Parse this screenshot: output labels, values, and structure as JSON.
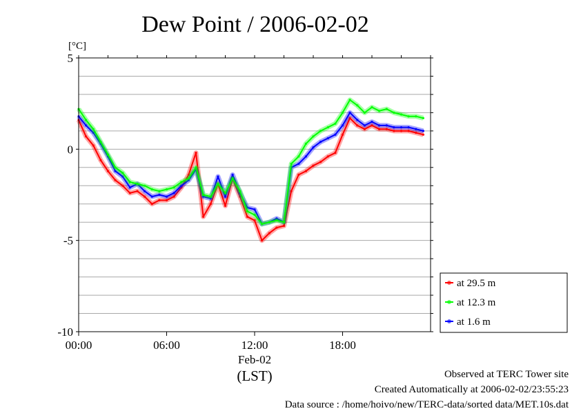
{
  "chart_data": {
    "type": "line",
    "title": "Dew Point / 2006-02-02",
    "ylabel": "[°C]",
    "xlabel": "(LST)",
    "date_label": "Feb-02",
    "ylim": [
      -10,
      5
    ],
    "xlim_hours": [
      0,
      24
    ],
    "yticks": [
      "5",
      "0",
      "-5",
      "-10"
    ],
    "xticks": [
      "00:00",
      "06:00",
      "12:00",
      "18:00"
    ],
    "grid": true,
    "legend_position": "right-bottom",
    "series": [
      {
        "name": "at 29.5 m",
        "color": "#ff0000",
        "x": [
          0,
          0.5,
          1,
          1.5,
          2,
          2.5,
          3,
          3.5,
          4,
          4.5,
          5,
          5.5,
          6,
          6.5,
          7,
          7.5,
          8,
          8.5,
          9,
          9.5,
          10,
          10.5,
          11,
          11.5,
          12,
          12.5,
          13,
          13.5,
          14,
          14.5,
          15,
          15.5,
          16,
          16.5,
          17,
          17.5,
          18,
          18.5,
          19,
          19.5,
          20,
          20.5,
          21,
          21.5,
          22,
          22.5,
          23,
          23.5
        ],
        "values": [
          1.6,
          0.7,
          0.2,
          -0.6,
          -1.2,
          -1.7,
          -2.0,
          -2.4,
          -2.3,
          -2.6,
          -3.0,
          -2.8,
          -2.8,
          -2.6,
          -2.1,
          -1.4,
          -0.2,
          -3.7,
          -3.0,
          -1.9,
          -3.1,
          -1.6,
          -2.6,
          -3.7,
          -3.9,
          -5.0,
          -4.6,
          -4.3,
          -4.2,
          -2.3,
          -1.4,
          -1.2,
          -0.9,
          -0.7,
          -0.4,
          -0.2,
          0.8,
          1.7,
          1.3,
          1.1,
          1.3,
          1.1,
          1.1,
          1.0,
          1.0,
          1.0,
          0.9,
          0.8
        ]
      },
      {
        "name": "at 12.3 m",
        "color": "#00ff00",
        "x": [
          0,
          0.5,
          1,
          1.5,
          2,
          2.5,
          3,
          3.5,
          4,
          4.5,
          5,
          5.5,
          6,
          6.5,
          7,
          7.5,
          8,
          8.5,
          9,
          9.5,
          10,
          10.5,
          11,
          11.5,
          12,
          12.5,
          13,
          13.5,
          14,
          14.5,
          15,
          15.5,
          16,
          16.5,
          17,
          17.5,
          18,
          18.5,
          19,
          19.5,
          20,
          20.5,
          21,
          21.5,
          22,
          22.5,
          23,
          23.5
        ],
        "values": [
          2.2,
          1.6,
          1.1,
          0.4,
          -0.3,
          -1.0,
          -1.3,
          -1.8,
          -1.9,
          -2.0,
          -2.2,
          -2.3,
          -2.2,
          -2.1,
          -1.8,
          -1.6,
          -1.0,
          -2.5,
          -2.6,
          -1.9,
          -2.4,
          -1.6,
          -2.3,
          -3.4,
          -3.6,
          -4.1,
          -4.0,
          -3.9,
          -4.0,
          -0.8,
          -0.4,
          0.3,
          0.7,
          1.0,
          1.2,
          1.4,
          2.0,
          2.7,
          2.4,
          2.0,
          2.3,
          2.1,
          2.2,
          2.0,
          1.9,
          1.8,
          1.8,
          1.7
        ]
      },
      {
        "name": "at 1.6 m",
        "color": "#0000ff",
        "x": [
          0,
          0.5,
          1,
          1.5,
          2,
          2.5,
          3,
          3.5,
          4,
          4.5,
          5,
          5.5,
          6,
          6.5,
          7,
          7.5,
          8,
          8.5,
          9,
          9.5,
          10,
          10.5,
          11,
          11.5,
          12,
          12.5,
          13,
          13.5,
          14,
          14.5,
          15,
          15.5,
          16,
          16.5,
          17,
          17.5,
          18,
          18.5,
          19,
          19.5,
          20,
          20.5,
          21,
          21.5,
          22,
          22.5,
          23,
          23.5
        ],
        "values": [
          1.8,
          1.3,
          0.9,
          0.3,
          -0.4,
          -1.2,
          -1.5,
          -2.1,
          -1.9,
          -2.3,
          -2.6,
          -2.5,
          -2.6,
          -2.4,
          -2.0,
          -1.7,
          -1.1,
          -2.6,
          -2.7,
          -1.5,
          -2.6,
          -1.4,
          -2.4,
          -3.2,
          -3.3,
          -4.1,
          -4.0,
          -3.8,
          -4.0,
          -1.0,
          -0.8,
          -0.4,
          0.1,
          0.4,
          0.6,
          0.8,
          1.3,
          2.0,
          1.6,
          1.3,
          1.5,
          1.3,
          1.3,
          1.2,
          1.2,
          1.2,
          1.1,
          1.0
        ]
      }
    ]
  },
  "footer": {
    "line1": "Observed at TERC Tower site",
    "line2": "Created Automatically at 2006-02-02/23:55:23",
    "line3": "Data source : /home/hoivo/new/TERC-data/sorted  data/MET.10s.dat"
  }
}
